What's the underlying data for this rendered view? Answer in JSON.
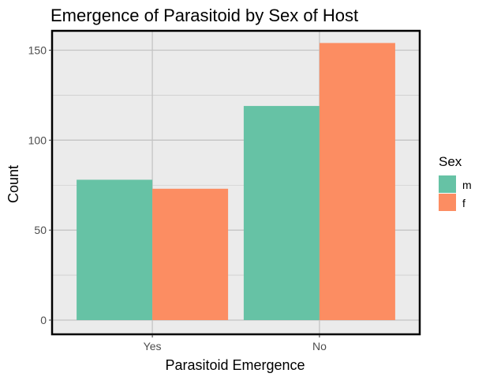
{
  "chart_data": {
    "type": "bar",
    "title": "Emergence of Parasitoid by Sex of Host",
    "xlabel": "Parasitoid Emergence",
    "ylabel": "Count",
    "categories": [
      "Yes",
      "No"
    ],
    "series": [
      {
        "name": "m",
        "values": [
          78,
          119
        ],
        "color": "#66c2a5"
      },
      {
        "name": "f",
        "values": [
          73,
          154
        ],
        "color": "#fc8d62"
      }
    ],
    "ylim": [
      0,
      160
    ],
    "yticks": [
      0,
      50,
      100,
      150
    ],
    "ytick_labels": [
      "0",
      "50",
      "100",
      "150"
    ],
    "grid": true,
    "legend": {
      "title": "Sex",
      "position": "right"
    },
    "panel_background": "#ebebeb",
    "grid_color": "#c4c4c4",
    "border_color": "#000000"
  }
}
